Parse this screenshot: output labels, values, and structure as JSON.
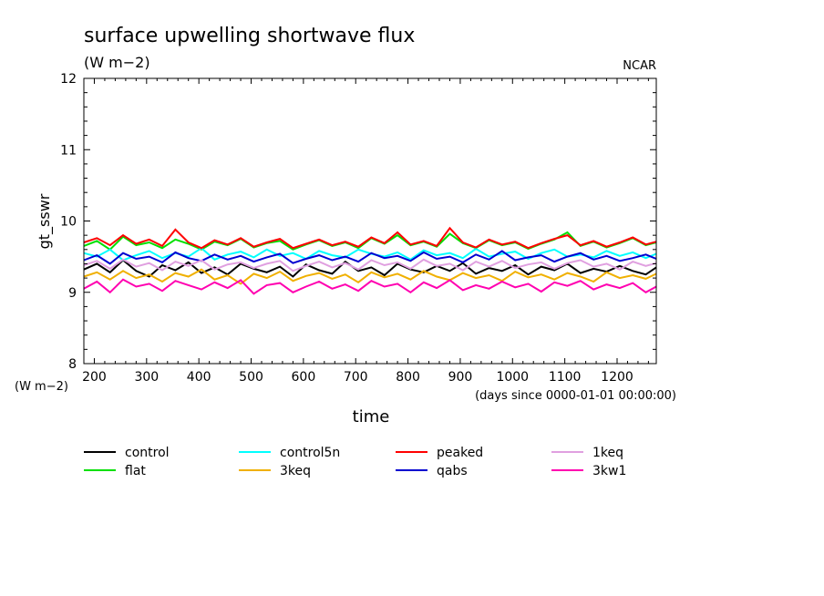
{
  "chart_data": {
    "type": "line",
    "title": "surface upwelling shortwave flux",
    "subtitle": "(W m−2)",
    "credit": "NCAR",
    "ylabel": "gt_sswr",
    "yunit": "(W m−2)",
    "xlabel": "time",
    "xunit": "(days since 0000-01-01 00:00:00)",
    "xlim": [
      180,
      1275
    ],
    "ylim": [
      8,
      12
    ],
    "xticks": [
      200,
      300,
      400,
      500,
      600,
      700,
      800,
      900,
      1000,
      1100,
      1200
    ],
    "yticks": [
      8,
      9,
      10,
      11,
      12
    ],
    "legend_position": "bottom",
    "x": [
      180,
      205,
      230,
      255,
      280,
      305,
      330,
      355,
      380,
      405,
      430,
      455,
      480,
      505,
      530,
      555,
      580,
      605,
      630,
      655,
      680,
      705,
      730,
      755,
      780,
      805,
      830,
      855,
      880,
      905,
      930,
      955,
      980,
      1005,
      1030,
      1055,
      1080,
      1105,
      1130,
      1155,
      1180,
      1205,
      1230,
      1255,
      1275
    ],
    "series": [
      {
        "name": "control",
        "color": "#000000",
        "values": [
          9.32,
          9.4,
          9.28,
          9.45,
          9.3,
          9.22,
          9.38,
          9.31,
          9.42,
          9.27,
          9.35,
          9.25,
          9.4,
          9.33,
          9.28,
          9.36,
          9.22,
          9.39,
          9.31,
          9.26,
          9.43,
          9.3,
          9.35,
          9.24,
          9.4,
          9.32,
          9.28,
          9.37,
          9.3,
          9.41,
          9.26,
          9.34,
          9.3,
          9.38,
          9.25,
          9.36,
          9.31,
          9.4,
          9.27,
          9.33,
          9.29,
          9.37,
          9.3,
          9.25,
          9.35
        ]
      },
      {
        "name": "flat",
        "color": "#00e000",
        "values": [
          9.65,
          9.72,
          9.6,
          9.78,
          9.66,
          9.7,
          9.62,
          9.74,
          9.68,
          9.6,
          9.71,
          9.66,
          9.75,
          9.63,
          9.69,
          9.72,
          9.6,
          9.67,
          9.73,
          9.65,
          9.7,
          9.62,
          9.76,
          9.68,
          9.8,
          9.66,
          9.71,
          9.64,
          9.82,
          9.69,
          9.62,
          9.73,
          9.66,
          9.7,
          9.61,
          9.68,
          9.74,
          9.84,
          9.65,
          9.71,
          9.63,
          9.69,
          9.76,
          9.66,
          9.7
        ]
      },
      {
        "name": "control5n",
        "color": "#00ffff",
        "values": [
          9.55,
          9.5,
          9.6,
          9.45,
          9.52,
          9.58,
          9.48,
          9.55,
          9.5,
          9.62,
          9.46,
          9.53,
          9.57,
          9.49,
          9.6,
          9.51,
          9.55,
          9.47,
          9.58,
          9.52,
          9.49,
          9.6,
          9.54,
          9.5,
          9.56,
          9.46,
          9.59,
          9.52,
          9.55,
          9.48,
          9.61,
          9.5,
          9.54,
          9.57,
          9.47,
          9.55,
          9.6,
          9.5,
          9.53,
          9.49,
          9.58,
          9.51,
          9.56,
          9.48,
          9.54
        ]
      },
      {
        "name": "3keq",
        "color": "#f0b000",
        "values": [
          9.22,
          9.28,
          9.18,
          9.3,
          9.2,
          9.25,
          9.15,
          9.27,
          9.22,
          9.32,
          9.18,
          9.24,
          9.12,
          9.26,
          9.2,
          9.29,
          9.16,
          9.23,
          9.27,
          9.19,
          9.25,
          9.14,
          9.28,
          9.21,
          9.26,
          9.18,
          9.3,
          9.22,
          9.17,
          9.27,
          9.2,
          9.24,
          9.16,
          9.29,
          9.21,
          9.25,
          9.18,
          9.27,
          9.22,
          9.15,
          9.28,
          9.2,
          9.24,
          9.19,
          9.26
        ]
      },
      {
        "name": "peaked",
        "color": "#ff0000",
        "values": [
          9.7,
          9.76,
          9.66,
          9.8,
          9.68,
          9.74,
          9.65,
          9.88,
          9.7,
          9.62,
          9.73,
          9.67,
          9.76,
          9.64,
          9.7,
          9.75,
          9.62,
          9.68,
          9.74,
          9.66,
          9.71,
          9.64,
          9.77,
          9.69,
          9.84,
          9.67,
          9.72,
          9.65,
          9.9,
          9.7,
          9.63,
          9.74,
          9.67,
          9.71,
          9.62,
          9.69,
          9.75,
          9.8,
          9.66,
          9.72,
          9.64,
          9.7,
          9.77,
          9.67,
          9.71
        ]
      },
      {
        "name": "qabs",
        "color": "#0000d0",
        "values": [
          9.45,
          9.52,
          9.4,
          9.55,
          9.47,
          9.5,
          9.42,
          9.56,
          9.48,
          9.44,
          9.53,
          9.46,
          9.51,
          9.43,
          9.49,
          9.54,
          9.41,
          9.47,
          9.52,
          9.45,
          9.5,
          9.43,
          9.55,
          9.48,
          9.51,
          9.44,
          9.56,
          9.47,
          9.5,
          9.42,
          9.53,
          9.46,
          9.58,
          9.45,
          9.49,
          9.52,
          9.43,
          9.5,
          9.55,
          9.46,
          9.51,
          9.44,
          9.48,
          9.53,
          9.47
        ]
      },
      {
        "name": "1keq",
        "color": "#e0a0e0",
        "values": [
          9.38,
          9.44,
          9.33,
          9.46,
          9.36,
          9.41,
          9.31,
          9.43,
          9.37,
          9.45,
          9.32,
          9.39,
          9.42,
          9.34,
          9.4,
          9.44,
          9.3,
          9.37,
          9.43,
          9.35,
          9.41,
          9.32,
          9.45,
          9.38,
          9.42,
          9.33,
          9.46,
          9.37,
          9.4,
          9.31,
          9.43,
          9.36,
          9.44,
          9.34,
          9.39,
          9.42,
          9.33,
          9.41,
          9.45,
          9.36,
          9.4,
          9.32,
          9.43,
          9.37,
          9.41
        ]
      },
      {
        "name": "3kw1",
        "color": "#ff00b0",
        "values": [
          9.05,
          9.15,
          9.0,
          9.18,
          9.08,
          9.12,
          9.02,
          9.16,
          9.1,
          9.04,
          9.14,
          9.06,
          9.17,
          8.98,
          9.1,
          9.13,
          9.0,
          9.08,
          9.15,
          9.05,
          9.11,
          9.02,
          9.16,
          9.08,
          9.12,
          9.0,
          9.14,
          9.06,
          9.17,
          9.03,
          9.1,
          9.05,
          9.15,
          9.07,
          9.12,
          9.01,
          9.14,
          9.09,
          9.16,
          9.04,
          9.11,
          9.06,
          9.13,
          9.0,
          9.08
        ]
      }
    ]
  }
}
